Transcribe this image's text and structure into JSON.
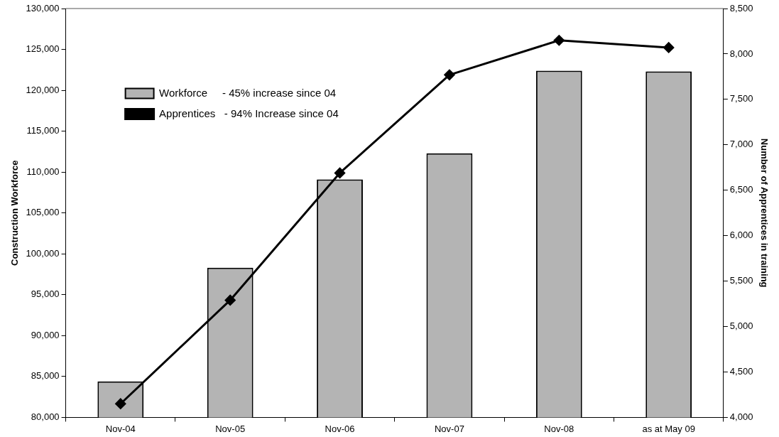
{
  "chart_data": {
    "type": "bar",
    "ylabel": "Construction Workforce",
    "y2label": "Number of Apprentices in training",
    "categories": [
      "Nov-04",
      "Nov-05",
      "Nov-06",
      "Nov-07",
      "Nov-08",
      "as at May 09"
    ],
    "series": [
      {
        "name": "Workforce     - 45% increase since 04",
        "color": "#b4b4b4",
        "values": [
          84400,
          98300,
          109100,
          112300,
          122400,
          122300
        ]
      },
      {
        "name": "Apprentices   - 94% Increase since 04",
        "type": "line",
        "axis": "y2",
        "color": "#000000",
        "marker": "diamond",
        "values": [
          4150,
          5290,
          6690,
          7770,
          8150,
          8070
        ]
      }
    ],
    "ylim": [
      80000,
      130000
    ],
    "yticks": [
      {
        "value": 80000,
        "label": "80,000"
      },
      {
        "value": 85000,
        "label": "85,000"
      },
      {
        "value": 90000,
        "label": "90,000"
      },
      {
        "value": 95000,
        "label": "95,000"
      },
      {
        "value": 100000,
        "label": "100,000"
      },
      {
        "value": 105000,
        "label": "105,000"
      },
      {
        "value": 110000,
        "label": "110,000"
      },
      {
        "value": 115000,
        "label": "115,000"
      },
      {
        "value": 120000,
        "label": "120,000"
      },
      {
        "value": 125000,
        "label": "125,000"
      },
      {
        "value": 130000,
        "label": "130,000"
      }
    ],
    "y2lim": [
      4000,
      8500
    ],
    "y2ticks": [
      {
        "value": 4000,
        "label": "4,000"
      },
      {
        "value": 4500,
        "label": "4,500"
      },
      {
        "value": 5000,
        "label": "5,000"
      },
      {
        "value": 5500,
        "label": "5,500"
      },
      {
        "value": 6000,
        "label": "6,000"
      },
      {
        "value": 6500,
        "label": "6,500"
      },
      {
        "value": 7000,
        "label": "7,000"
      },
      {
        "value": 7500,
        "label": "7,500"
      },
      {
        "value": 8000,
        "label": "8,000"
      },
      {
        "value": 8500,
        "label": "8,500"
      }
    ],
    "grid": false,
    "legend": "top left"
  }
}
